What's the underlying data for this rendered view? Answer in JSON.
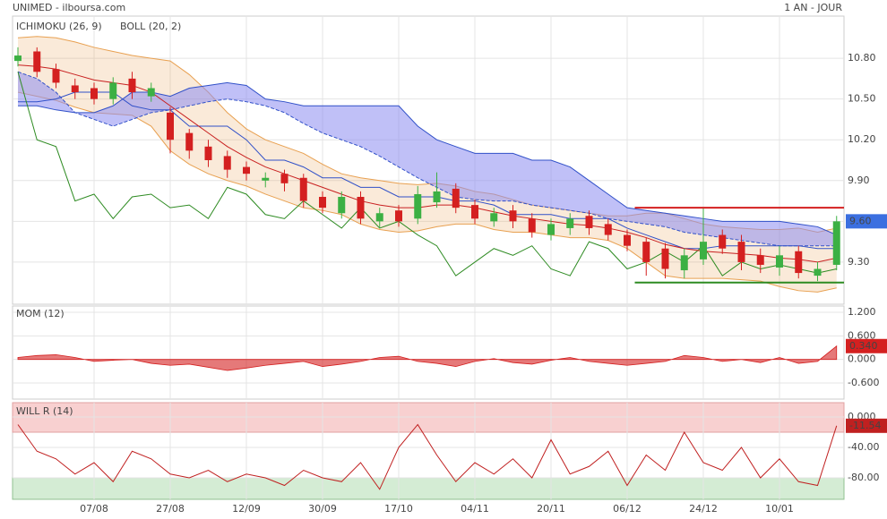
{
  "chart_data": [
    {
      "type": "candlestick",
      "title": "UNIMED - ilboursa.com",
      "period": "1 AN - JOUR",
      "categories": [
        null,
        null,
        null,
        null,
        "07/08",
        null,
        null,
        null,
        "27/08",
        null,
        null,
        null,
        "12/09",
        null,
        null,
        null,
        "30/09",
        null,
        null,
        null,
        "17/10",
        null,
        null,
        null,
        "04/11",
        null,
        null,
        null,
        "20/11",
        null,
        null,
        null,
        "06/12",
        null,
        null,
        null,
        "24/12",
        null,
        null,
        null,
        "10/01",
        null,
        null,
        null
      ],
      "open": [
        10.78,
        10.85,
        10.72,
        10.6,
        10.58,
        10.5,
        10.65,
        10.52,
        10.4,
        10.25,
        10.15,
        10.08,
        10.0,
        9.9,
        9.95,
        9.92,
        9.78,
        9.66,
        9.78,
        9.6,
        9.68,
        9.62,
        9.74,
        9.84,
        9.72,
        9.6,
        9.68,
        9.62,
        9.5,
        9.55,
        9.64,
        9.58,
        9.5,
        9.45,
        9.4,
        9.24,
        9.32,
        9.5,
        9.45,
        9.35,
        9.26,
        9.38,
        9.2,
        9.28
      ],
      "high": [
        10.88,
        10.88,
        10.76,
        10.65,
        10.62,
        10.66,
        10.7,
        10.62,
        10.44,
        10.28,
        10.2,
        10.12,
        10.04,
        9.96,
        9.98,
        9.95,
        9.82,
        9.82,
        9.82,
        9.7,
        9.72,
        9.86,
        9.96,
        9.88,
        9.76,
        9.7,
        9.72,
        9.66,
        9.62,
        9.66,
        9.68,
        9.62,
        9.54,
        9.48,
        9.44,
        9.4,
        9.7,
        9.54,
        9.5,
        9.4,
        9.42,
        9.42,
        9.3,
        9.64
      ],
      "low": [
        10.74,
        10.66,
        10.58,
        10.5,
        10.46,
        10.46,
        10.5,
        10.48,
        10.1,
        10.06,
        10.0,
        9.92,
        9.9,
        9.85,
        9.82,
        9.7,
        9.66,
        9.62,
        9.58,
        9.55,
        9.56,
        9.58,
        9.7,
        9.66,
        9.58,
        9.56,
        9.55,
        9.48,
        9.46,
        9.5,
        9.5,
        9.46,
        9.38,
        9.2,
        9.18,
        9.18,
        9.28,
        9.36,
        9.24,
        9.22,
        9.2,
        9.18,
        9.16,
        9.24
      ],
      "close": [
        10.82,
        10.7,
        10.62,
        10.55,
        10.5,
        10.62,
        10.55,
        10.58,
        10.2,
        10.12,
        10.05,
        9.98,
        9.95,
        9.92,
        9.88,
        9.75,
        9.7,
        9.78,
        9.62,
        9.66,
        9.6,
        9.8,
        9.82,
        9.7,
        9.62,
        9.66,
        9.6,
        9.52,
        9.58,
        9.62,
        9.55,
        9.5,
        9.42,
        9.3,
        9.25,
        9.35,
        9.45,
        9.4,
        9.3,
        9.28,
        9.35,
        9.22,
        9.25,
        9.6
      ],
      "up_color": "#3cb043",
      "down_color": "#d42020",
      "last_value": {
        "value": 9.6,
        "label": "9.60"
      },
      "last_color": "#3b6fe0",
      "ichimoku": {
        "label": "ICHIMOKU (26, 9)",
        "color": "#3050c8",
        "cloud_color": "#8c8cf0",
        "chikou_color": "#2e8b22",
        "span_a": [
          10.45,
          10.45,
          10.42,
          10.4,
          10.4,
          10.45,
          10.55,
          10.55,
          10.52,
          10.58,
          10.6,
          10.62,
          10.6,
          10.5,
          10.48,
          10.45,
          10.45,
          10.45,
          10.45,
          10.45,
          10.45,
          10.3,
          10.2,
          10.15,
          10.1,
          10.1,
          10.1,
          10.05,
          10.05,
          10.0,
          9.9,
          9.8,
          9.7,
          9.68,
          9.66,
          9.64,
          9.62,
          9.6,
          9.6,
          9.6,
          9.6,
          9.58,
          9.56,
          9.5
        ],
        "span_b": [
          10.7,
          10.65,
          10.55,
          10.4,
          10.35,
          10.3,
          10.35,
          10.4,
          10.42,
          10.45,
          10.48,
          10.5,
          10.48,
          10.45,
          10.4,
          10.32,
          10.25,
          10.2,
          10.15,
          10.08,
          10.0,
          9.92,
          9.85,
          9.78,
          9.76,
          9.75,
          9.75,
          9.72,
          9.7,
          9.68,
          9.66,
          9.62,
          9.6,
          9.58,
          9.56,
          9.52,
          9.5,
          9.48,
          9.46,
          9.44,
          9.42,
          9.42,
          9.42,
          9.42
        ],
        "kijun": [
          10.48,
          10.48,
          10.5,
          10.55,
          10.55,
          10.55,
          10.45,
          10.42,
          10.42,
          10.3,
          10.3,
          10.3,
          10.2,
          10.05,
          10.05,
          10.0,
          9.92,
          9.92,
          9.85,
          9.85,
          9.78,
          9.78,
          9.78,
          9.75,
          9.75,
          9.72,
          9.65,
          9.65,
          9.65,
          9.62,
          9.62,
          9.62,
          9.55,
          9.5,
          9.45,
          9.4,
          9.4,
          9.42,
          9.42,
          9.42,
          9.42,
          9.42,
          9.4,
          9.4
        ],
        "chikou": [
          10.7,
          10.2,
          10.15,
          9.75,
          9.8,
          9.62,
          9.78,
          9.8,
          9.7,
          9.72,
          9.62,
          9.85,
          9.8,
          9.65,
          9.62,
          9.75,
          9.65,
          9.55,
          9.7,
          9.55,
          9.6,
          9.5,
          9.42,
          9.2,
          9.3,
          9.4,
          9.35,
          9.42,
          9.25,
          9.2,
          9.45,
          9.4,
          9.25,
          9.3,
          9.38,
          9.3,
          9.42,
          9.2,
          9.3,
          9.25,
          9.28,
          9.25,
          9.22,
          9.25
        ]
      },
      "boll": {
        "label": "BOLL (20, 2)",
        "color": "#e8a050",
        "mid_color": "#c82020",
        "upper": [
          10.95,
          10.96,
          10.95,
          10.92,
          10.88,
          10.85,
          10.82,
          10.8,
          10.78,
          10.68,
          10.55,
          10.4,
          10.28,
          10.2,
          10.15,
          10.1,
          10.02,
          9.95,
          9.92,
          9.9,
          9.88,
          9.87,
          9.88,
          9.86,
          9.82,
          9.8,
          9.76,
          9.72,
          9.7,
          9.68,
          9.66,
          9.64,
          9.64,
          9.66,
          9.66,
          9.62,
          9.58,
          9.56,
          9.55,
          9.54,
          9.54,
          9.55,
          9.52,
          9.55
        ],
        "mid": [
          10.75,
          10.74,
          10.72,
          10.68,
          10.64,
          10.62,
          10.6,
          10.55,
          10.45,
          10.35,
          10.25,
          10.15,
          10.07,
          10.0,
          9.95,
          9.9,
          9.85,
          9.8,
          9.75,
          9.72,
          9.7,
          9.7,
          9.72,
          9.72,
          9.7,
          9.67,
          9.64,
          9.62,
          9.6,
          9.58,
          9.57,
          9.55,
          9.52,
          9.48,
          9.43,
          9.4,
          9.38,
          9.37,
          9.36,
          9.35,
          9.33,
          9.32,
          9.3,
          9.33
        ],
        "lower": [
          10.55,
          10.52,
          10.49,
          10.44,
          10.4,
          10.39,
          10.38,
          10.3,
          10.12,
          10.02,
          9.95,
          9.9,
          9.86,
          9.8,
          9.75,
          9.7,
          9.68,
          9.65,
          9.58,
          9.54,
          9.52,
          9.53,
          9.56,
          9.58,
          9.58,
          9.54,
          9.52,
          9.52,
          9.5,
          9.48,
          9.48,
          9.46,
          9.4,
          9.3,
          9.2,
          9.18,
          9.18,
          9.18,
          9.17,
          9.16,
          9.12,
          9.09,
          9.08,
          9.11
        ]
      },
      "resistance": 9.7,
      "resistance_color": "#d42020",
      "support": 9.15,
      "support_color": "#2e8b22",
      "ylim": [
        8.99,
        11.11
      ],
      "yticks": [
        {
          "value": 10.8,
          "label": "10.80"
        },
        {
          "value": 10.5,
          "label": "10.50"
        },
        {
          "value": 10.2,
          "label": "10.20"
        },
        {
          "value": 9.9,
          "label": "9.90"
        },
        {
          "value": 9.6,
          "label": "9.60"
        },
        {
          "value": 9.3,
          "label": "9.30"
        }
      ],
      "grid": true
    },
    {
      "type": "area",
      "label": "MOM (12)",
      "color": "#d42020",
      "values": [
        0.05,
        0.1,
        0.12,
        0.05,
        -0.05,
        -0.02,
        0.0,
        -0.1,
        -0.15,
        -0.12,
        -0.2,
        -0.28,
        -0.22,
        -0.15,
        -0.1,
        -0.05,
        -0.18,
        -0.12,
        -0.05,
        0.05,
        0.08,
        -0.05,
        -0.1,
        -0.18,
        -0.05,
        0.02,
        -0.08,
        -0.12,
        -0.02,
        0.05,
        -0.05,
        -0.1,
        -0.15,
        -0.1,
        -0.05,
        0.1,
        0.05,
        -0.05,
        0.0,
        -0.08,
        0.05,
        -0.1,
        -0.05,
        0.34
      ],
      "last_value": {
        "value": 0.34,
        "label": "0.340"
      },
      "ylim": [
        -1.01,
        1.36
      ],
      "yticks": [
        {
          "value": 1.2,
          "label": "1.200"
        },
        {
          "value": 0.6,
          "label": "0.600"
        },
        {
          "value": 0,
          "label": "0.000"
        },
        {
          "value": -0.6,
          "label": "-0.600"
        }
      ],
      "grid": true
    },
    {
      "type": "line",
      "label": "WILL R (14)",
      "color": "#c02020",
      "values": [
        -10,
        -45,
        -55,
        -75,
        -60,
        -85,
        -45,
        -55,
        -75,
        -80,
        -70,
        -85,
        -75,
        -80,
        -90,
        -70,
        -80,
        -85,
        -60,
        -95,
        -40,
        -10,
        -50,
        -85,
        -60,
        -75,
        -55,
        -80,
        -30,
        -75,
        -65,
        -45,
        -90,
        -50,
        -70,
        -20,
        -60,
        -70,
        -40,
        -80,
        -55,
        -85,
        -90,
        -11.54
      ],
      "last_value": -11.54,
      "overbought": -20,
      "overbought_color": "#f8d0d0",
      "oversold": -80,
      "oversold_color": "#d4ecd4",
      "ylim": [
        -108.2,
        18.8
      ],
      "yticks": [
        {
          "value": 0,
          "label": "0.000"
        },
        {
          "value": -40,
          "label": "-40.00"
        },
        {
          "value": -80,
          "label": "-80.00"
        }
      ],
      "grid": true
    }
  ]
}
